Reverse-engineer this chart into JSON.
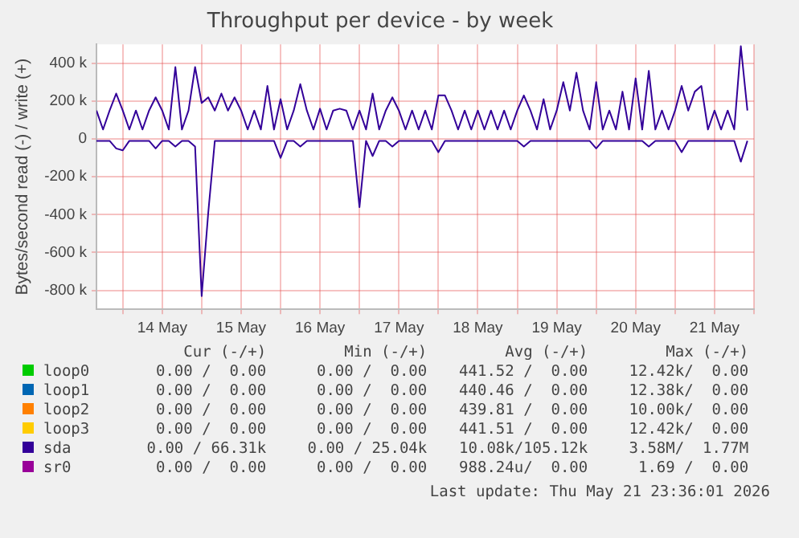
{
  "chart_data": {
    "type": "line",
    "title": "Throughput per device - by week",
    "ylabel": "Bytes/second read (-) / write (+)",
    "x": [
      "2026-05-13T16:00",
      "2026-05-13T18:00",
      "2026-05-13T20:00",
      "2026-05-13T22:00",
      "2026-05-14T00:00",
      "2026-05-14T02:00",
      "2026-05-14T04:00",
      "2026-05-14T06:00",
      "2026-05-14T08:00",
      "2026-05-14T10:00",
      "2026-05-14T12:00",
      "2026-05-14T14:00",
      "2026-05-14T16:00",
      "2026-05-14T18:00",
      "2026-05-14T20:00",
      "2026-05-14T22:00",
      "2026-05-15T00:00",
      "2026-05-15T02:00",
      "2026-05-15T04:00",
      "2026-05-15T06:00",
      "2026-05-15T08:00",
      "2026-05-15T10:00",
      "2026-05-15T12:00",
      "2026-05-15T14:00",
      "2026-05-15T16:00",
      "2026-05-15T18:00",
      "2026-05-15T20:00",
      "2026-05-15T22:00",
      "2026-05-16T00:00",
      "2026-05-16T02:00",
      "2026-05-16T04:00",
      "2026-05-16T06:00",
      "2026-05-16T08:00",
      "2026-05-16T10:00",
      "2026-05-16T12:00",
      "2026-05-16T14:00",
      "2026-05-16T16:00",
      "2026-05-16T18:00",
      "2026-05-16T20:00",
      "2026-05-16T22:00",
      "2026-05-17T00:00",
      "2026-05-17T02:00",
      "2026-05-17T04:00",
      "2026-05-17T06:00",
      "2026-05-17T08:00",
      "2026-05-17T10:00",
      "2026-05-17T12:00",
      "2026-05-17T14:00",
      "2026-05-17T16:00",
      "2026-05-17T18:00",
      "2026-05-17T20:00",
      "2026-05-17T22:00",
      "2026-05-18T00:00",
      "2026-05-18T02:00",
      "2026-05-18T04:00",
      "2026-05-18T06:00",
      "2026-05-18T08:00",
      "2026-05-18T10:00",
      "2026-05-18T12:00",
      "2026-05-18T14:00",
      "2026-05-18T16:00",
      "2026-05-18T18:00",
      "2026-05-18T20:00",
      "2026-05-18T22:00",
      "2026-05-19T00:00",
      "2026-05-19T02:00",
      "2026-05-19T04:00",
      "2026-05-19T06:00",
      "2026-05-19T08:00",
      "2026-05-19T10:00",
      "2026-05-19T12:00",
      "2026-05-19T14:00",
      "2026-05-19T16:00",
      "2026-05-19T18:00",
      "2026-05-19T20:00",
      "2026-05-19T22:00",
      "2026-05-20T00:00",
      "2026-05-20T02:00",
      "2026-05-20T04:00",
      "2026-05-20T06:00",
      "2026-05-20T08:00",
      "2026-05-20T10:00",
      "2026-05-20T12:00",
      "2026-05-20T14:00",
      "2026-05-20T16:00",
      "2026-05-20T18:00",
      "2026-05-20T20:00",
      "2026-05-20T22:00",
      "2026-05-21T00:00",
      "2026-05-21T02:00",
      "2026-05-21T04:00",
      "2026-05-21T06:00",
      "2026-05-21T08:00",
      "2026-05-21T10:00",
      "2026-05-21T12:00",
      "2026-05-21T14:00",
      "2026-05-21T16:00",
      "2026-05-21T18:00",
      "2026-05-21T20:00",
      "2026-05-21T22:00"
    ],
    "series": [
      {
        "name": "loop0",
        "color": "#00cc00",
        "values": [
          null,
          null,
          null,
          null,
          null,
          null,
          null,
          null,
          null,
          null,
          null,
          null,
          null,
          null,
          null,
          null,
          null,
          null,
          null,
          null,
          null,
          null,
          null,
          null,
          null,
          null,
          null,
          null,
          null,
          null,
          null,
          null,
          null,
          null,
          null,
          null,
          null,
          null,
          null,
          null,
          null,
          null,
          null,
          null,
          null,
          null,
          null,
          null,
          null,
          null,
          null,
          null,
          null,
          null,
          null,
          null,
          null,
          null,
          null,
          null,
          null,
          null,
          null,
          null,
          null,
          null,
          null,
          null,
          null,
          null,
          null,
          null,
          null,
          null,
          null,
          null,
          null,
          null,
          null,
          null,
          null,
          null,
          null,
          null,
          null,
          null,
          null,
          null,
          null,
          null,
          null,
          null,
          null,
          null,
          null,
          null,
          null,
          null,
          null,
          null
        ]
      },
      {
        "name": "loop1",
        "color": "#0066b3",
        "values": [
          null,
          null,
          null,
          null,
          null,
          null,
          null,
          null,
          null,
          null,
          null,
          null,
          null,
          null,
          null,
          null,
          null,
          null,
          null,
          null,
          null,
          null,
          null,
          null,
          null,
          null,
          null,
          null,
          null,
          null,
          null,
          null,
          null,
          null,
          null,
          null,
          null,
          null,
          null,
          null,
          null,
          null,
          null,
          null,
          null,
          null,
          null,
          null,
          null,
          null,
          null,
          null,
          null,
          null,
          null,
          null,
          null,
          null,
          null,
          null,
          null,
          null,
          null,
          null,
          null,
          null,
          null,
          null,
          null,
          null,
          null,
          null,
          null,
          null,
          null,
          null,
          null,
          null,
          null,
          null,
          null,
          null,
          null,
          null,
          null,
          null,
          null,
          null,
          null,
          null,
          null,
          null,
          null,
          null,
          null,
          null,
          null,
          null,
          null,
          null
        ]
      },
      {
        "name": "loop2",
        "color": "#ff8000",
        "values": [
          null,
          null,
          null,
          null,
          null,
          null,
          null,
          null,
          null,
          null,
          null,
          null,
          null,
          null,
          null,
          null,
          null,
          null,
          null,
          null,
          null,
          null,
          null,
          null,
          null,
          null,
          null,
          null,
          null,
          null,
          null,
          null,
          null,
          null,
          null,
          null,
          null,
          null,
          null,
          null,
          null,
          null,
          null,
          null,
          null,
          null,
          null,
          null,
          null,
          null,
          null,
          null,
          null,
          null,
          null,
          null,
          null,
          null,
          null,
          null,
          null,
          null,
          null,
          null,
          null,
          null,
          null,
          null,
          null,
          null,
          null,
          null,
          null,
          null,
          null,
          null,
          null,
          null,
          null,
          null,
          null,
          null,
          null,
          null,
          null,
          null,
          null,
          null,
          null,
          null,
          null,
          null,
          null,
          null,
          null,
          null,
          null,
          null,
          null,
          null
        ]
      },
      {
        "name": "loop3",
        "color": "#ffcc00",
        "values": [
          null,
          null,
          null,
          null,
          null,
          null,
          null,
          null,
          null,
          null,
          null,
          null,
          null,
          null,
          null,
          null,
          null,
          null,
          null,
          null,
          null,
          null,
          null,
          null,
          null,
          null,
          null,
          null,
          null,
          null,
          null,
          null,
          null,
          null,
          null,
          null,
          null,
          null,
          null,
          null,
          null,
          null,
          null,
          null,
          null,
          null,
          null,
          null,
          null,
          null,
          null,
          null,
          null,
          null,
          null,
          null,
          null,
          null,
          null,
          null,
          null,
          null,
          null,
          null,
          null,
          null,
          null,
          null,
          null,
          null,
          null,
          null,
          null,
          null,
          null,
          null,
          null,
          null,
          null,
          null,
          null,
          null,
          null,
          null,
          null,
          null,
          null,
          null,
          null,
          null,
          null,
          null,
          null,
          null,
          null,
          null,
          null,
          null,
          null,
          null
        ]
      },
      {
        "name": "sda",
        "color": "#330099",
        "values": [
          150000,
          50000,
          150000,
          240000,
          150000,
          50000,
          150000,
          50000,
          150000,
          220000,
          150000,
          50000,
          380000,
          50000,
          150000,
          380000,
          190000,
          220000,
          150000,
          240000,
          150000,
          220000,
          150000,
          50000,
          150000,
          50000,
          280000,
          50000,
          210000,
          50000,
          150000,
          290000,
          150000,
          50000,
          160000,
          50000,
          150000,
          160000,
          150000,
          50000,
          150000,
          50000,
          240000,
          50000,
          150000,
          220000,
          150000,
          50000,
          150000,
          50000,
          150000,
          50000,
          230000,
          230000,
          150000,
          50000,
          150000,
          50000,
          150000,
          50000,
          150000,
          50000,
          150000,
          50000,
          150000,
          230000,
          150000,
          50000,
          210000,
          50000,
          150000,
          300000,
          150000,
          350000,
          150000,
          50000,
          300000,
          50000,
          150000,
          50000,
          250000,
          50000,
          320000,
          50000,
          360000,
          50000,
          150000,
          50000,
          150000,
          280000,
          150000,
          250000,
          280000,
          50000,
          150000,
          50000,
          150000,
          50000,
          490000,
          150000
        ]
      },
      {
        "name": "sr0",
        "color": "#990099",
        "values": [
          null,
          null,
          null,
          null,
          null,
          null,
          null,
          null,
          null,
          null,
          null,
          null,
          null,
          null,
          null,
          null,
          null,
          null,
          null,
          null,
          null,
          null,
          null,
          null,
          null,
          null,
          null,
          null,
          null,
          null,
          null,
          null,
          null,
          null,
          null,
          null,
          null,
          null,
          null,
          null,
          null,
          null,
          null,
          null,
          null,
          null,
          null,
          null,
          null,
          null,
          null,
          null,
          null,
          null,
          null,
          null,
          null,
          null,
          null,
          null,
          null,
          null,
          null,
          null,
          null,
          null,
          null,
          null,
          null,
          null,
          null,
          null,
          null,
          null,
          null,
          null,
          null,
          null,
          null,
          null,
          null,
          null,
          null,
          null,
          null,
          null,
          null,
          null,
          null,
          null,
          null,
          null,
          null,
          null,
          null,
          null,
          null,
          null,
          null,
          null
        ]
      },
      {
        "color": "#330099",
        "values": [
          -10000,
          -10000,
          -10000,
          -50000,
          -60000,
          -10000,
          -10000,
          -10000,
          -10000,
          -50000,
          -10000,
          -10000,
          -40000,
          -10000,
          -10000,
          -40000,
          -830000,
          -390000,
          -10000,
          -10000,
          -10000,
          -10000,
          -10000,
          -10000,
          -10000,
          -10000,
          -10000,
          -10000,
          -100000,
          -10000,
          -10000,
          -40000,
          -10000,
          -10000,
          -10000,
          -10000,
          -10000,
          -10000,
          -10000,
          -10000,
          -360000,
          -10000,
          -90000,
          -10000,
          -10000,
          -40000,
          -10000,
          -10000,
          -10000,
          -10000,
          -10000,
          -10000,
          -70000,
          -10000,
          -10000,
          -10000,
          -10000,
          -10000,
          -10000,
          -10000,
          -10000,
          -10000,
          -10000,
          -10000,
          -10000,
          -40000,
          -10000,
          -10000,
          -10000,
          -10000,
          -10000,
          -10000,
          -10000,
          -10000,
          -10000,
          -10000,
          -50000,
          -10000,
          -10000,
          -10000,
          -10000,
          -10000,
          -10000,
          -10000,
          -40000,
          -10000,
          -10000,
          -10000,
          -10000,
          -70000,
          -10000,
          -10000,
          -10000,
          -10000,
          -10000,
          -10000,
          -10000,
          -10000,
          -120000,
          -10000
        ]
      }
    ],
    "xlim": [
      "2026-05-13T16:00",
      "2026-05-22T00:00"
    ],
    "xticks": [
      {
        "value": "2026-05-14T00:00",
        "label": null
      },
      {
        "value": "2026-05-14T12:00",
        "label": "14 May"
      },
      {
        "value": "2026-05-15T00:00",
        "label": null
      },
      {
        "value": "2026-05-15T12:00",
        "label": "15 May"
      },
      {
        "value": "2026-05-16T00:00",
        "label": null
      },
      {
        "value": "2026-05-16T12:00",
        "label": "16 May"
      },
      {
        "value": "2026-05-17T00:00",
        "label": null
      },
      {
        "value": "2026-05-17T12:00",
        "label": "17 May"
      },
      {
        "value": "2026-05-18T00:00",
        "label": null
      },
      {
        "value": "2026-05-18T12:00",
        "label": "18 May"
      },
      {
        "value": "2026-05-19T00:00",
        "label": null
      },
      {
        "value": "2026-05-19T12:00",
        "label": "19 May"
      },
      {
        "value": "2026-05-20T00:00",
        "label": null
      },
      {
        "value": "2026-05-20T12:00",
        "label": "20 May"
      },
      {
        "value": "2026-05-21T00:00",
        "label": null
      },
      {
        "value": "2026-05-21T12:00",
        "label": "21 May"
      },
      {
        "value": "2026-05-22T00:00",
        "label": null
      }
    ],
    "ylim": [
      -900000,
      500000
    ],
    "yticks": [
      {
        "value": -800000,
        "label": "-800 k"
      },
      {
        "value": -600000,
        "label": "-600 k"
      },
      {
        "value": -400000,
        "label": "-400 k"
      },
      {
        "value": -200000,
        "label": "-200 k"
      },
      0,
      {
        "value": 200000,
        "label": "200 k"
      },
      {
        "value": 400000,
        "label": "400 k"
      }
    ],
    "grid": true,
    "legend": "bottom",
    "marker": "none",
    "line_style": "solid",
    "annotations": [
      "Cur (-/+)",
      "Min (-/+)",
      "Avg (-/+)",
      "Max (-/+)",
      "0.00 /  0.00",
      "0.00 /  0.00",
      "441.52 /  0.00",
      "12.42k/  0.00",
      "0.00 /  0.00",
      "0.00 /  0.00",
      "440.46 /  0.00",
      "12.38k/  0.00",
      "0.00 /  0.00",
      "0.00 /  0.00",
      "439.81 /  0.00",
      "10.00k/  0.00",
      "0.00 /  0.00",
      "0.00 /  0.00",
      "441.51 /  0.00",
      "12.42k/  0.00",
      "0.00 / 66.31k",
      "0.00 / 25.04k",
      "10.08k/105.12k",
      "3.58M/  1.77M",
      "0.00 /  0.00",
      "0.00 /  0.00",
      "988.24u/  0.00",
      "1.69 /  0.00",
      "Last update: Thu May 21 23:36:01 2026"
    ]
  }
}
